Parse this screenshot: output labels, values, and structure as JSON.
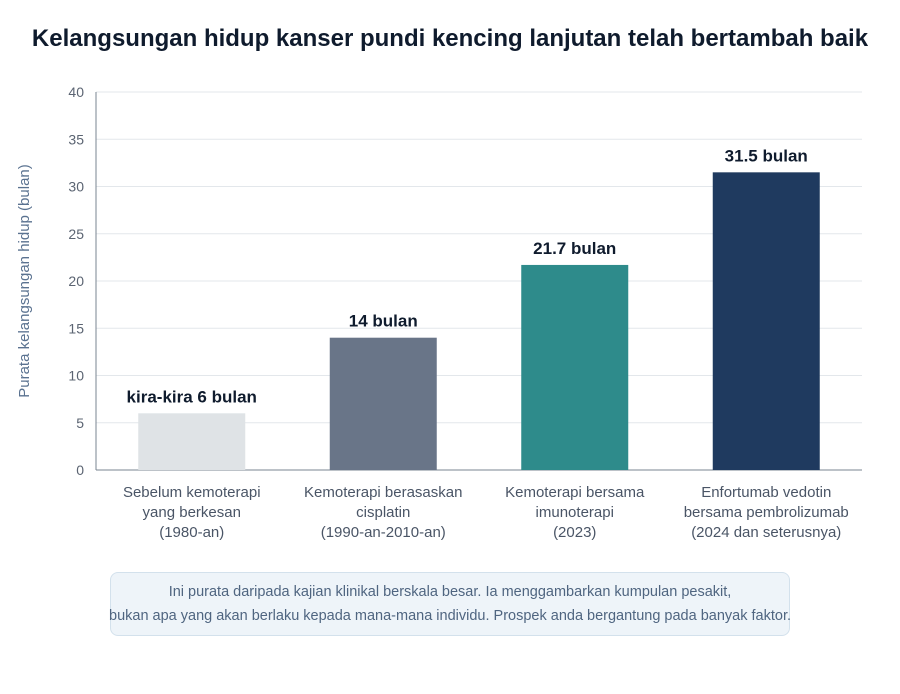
{
  "chart_data": {
    "type": "bar",
    "title": "Kelangsungan hidup kanser pundi kencing lanjutan telah bertambah baik",
    "ylabel": "Purata kelangsungan hidup (bulan)",
    "xlabel": "",
    "ylim": [
      0,
      40
    ],
    "yticks": [
      0,
      5,
      10,
      15,
      20,
      25,
      30,
      35,
      40
    ],
    "grid": true,
    "categories": [
      [
        "Sebelum kemoterapi",
        "yang berkesan",
        "(1980-an)"
      ],
      [
        "Kemoterapi berasaskan",
        "cisplatin",
        "(1990-an-2010-an)"
      ],
      [
        "Kemoterapi bersama",
        "imunoterapi",
        "(2023)"
      ],
      [
        "Enfortumab vedotin",
        "bersama pembrolizumab",
        "(2024 dan seterusnya)"
      ]
    ],
    "values": [
      6,
      14,
      21.7,
      31.5
    ],
    "value_labels": [
      "kira-kira 6 bulan",
      "14 bulan",
      "21.7 bulan",
      "31.5 bulan"
    ],
    "colors": [
      "#dfe3e6",
      "#697588",
      "#2e8b8b",
      "#1f3a5f"
    ]
  },
  "note": {
    "line1": "Ini purata daripada kajian klinikal berskala besar. Ia menggambarkan kumpulan pesakit,",
    "line2": "bukan apa yang akan berlaku kepada mana-mana individu. Prospek anda bergantung pada banyak faktor."
  }
}
